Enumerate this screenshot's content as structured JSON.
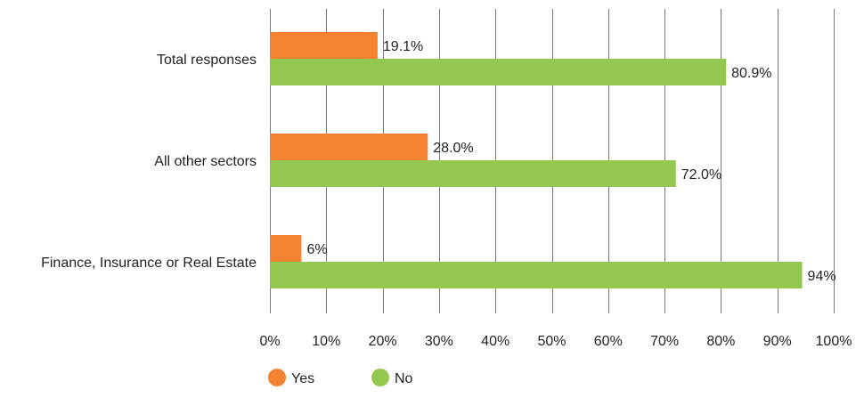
{
  "chart_data": {
    "type": "bar",
    "orientation": "horizontal",
    "categories": [
      "Total responses",
      "All other sectors",
      "Finance, Insurance or Real Estate"
    ],
    "series": [
      {
        "name": "Yes",
        "values": [
          19.1,
          28.0,
          5.6
        ],
        "labels": [
          "19.1%",
          "28.0%",
          "6%"
        ],
        "color": "#f38231"
      },
      {
        "name": "No",
        "values": [
          80.9,
          72.0,
          94.4
        ],
        "labels": [
          "80.9%",
          "72.0%",
          "94%"
        ],
        "color": "#92c850"
      }
    ],
    "xlim": [
      0,
      100
    ],
    "xticks": [
      0,
      10,
      20,
      30,
      40,
      50,
      60,
      70,
      80,
      90,
      100
    ],
    "xtick_labels": [
      "0%",
      "10%",
      "20%",
      "30%",
      "40%",
      "50%",
      "60%",
      "70%",
      "80%",
      "90%",
      "100%"
    ],
    "grid": "vertical",
    "legend_position": "bottom"
  }
}
